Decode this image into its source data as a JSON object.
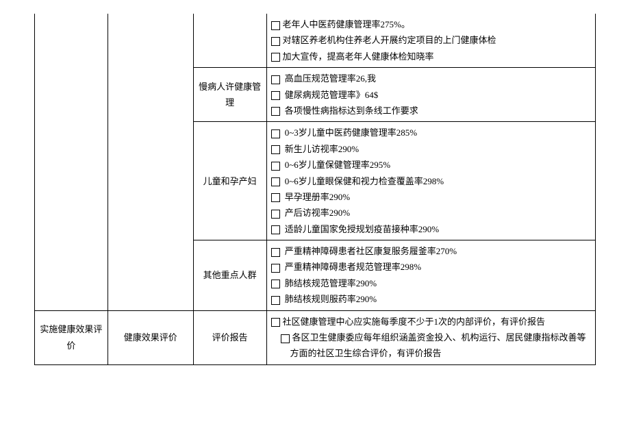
{
  "table": {
    "rows": [
      {
        "col1": "",
        "col2": "",
        "col3": "",
        "col4_lines": [
          "老年人中医药健康管理率275%。",
          "对辖区养老机构住养老人开展约定项目的上门健康体检",
          "加大宣传，提高老年人健康体检知晓率"
        ]
      },
      {
        "col3": "慢病人许健康管理",
        "col4_lines": [
          "高血压规范管理率26,我",
          "健尿病规范管理率》64$",
          "各项慢性病指标达到条线工作要求"
        ]
      },
      {
        "col3": "儿童和孕产妇",
        "col4_lines": [
          "0~3岁儿童中医药健康管理率285%",
          "新生儿访视率290%",
          "0~6岁儿童保健管理率295%",
          "0~6岁儿童眼保健和视力检查覆盖率298%",
          "早孕理册率290%",
          "产后访视率290%",
          "适龄儿童国家免授规划疫苗接种率290%"
        ]
      },
      {
        "col3": "其他重点人群",
        "col4_lines": [
          "严重精神障碍患者社区康复服务履釜率270%",
          "严重精神障碍患者规范管理率298%",
          "肺结核规范管理率290%",
          "肺结核规则服药率290%"
        ]
      },
      {
        "col1": "实施健康效果评价",
        "col2": "健康效果评价",
        "col3": "评价报告",
        "col4_lines": [
          "社区健康管理中心应实施每季度不少于1次的内部评价，有评价报告",
          "各区卫生健康委应每年组织涵盖资金投入、机构运行、居民健康指标改善等方面的社区卫生综合评价，有评价报告"
        ]
      }
    ]
  }
}
